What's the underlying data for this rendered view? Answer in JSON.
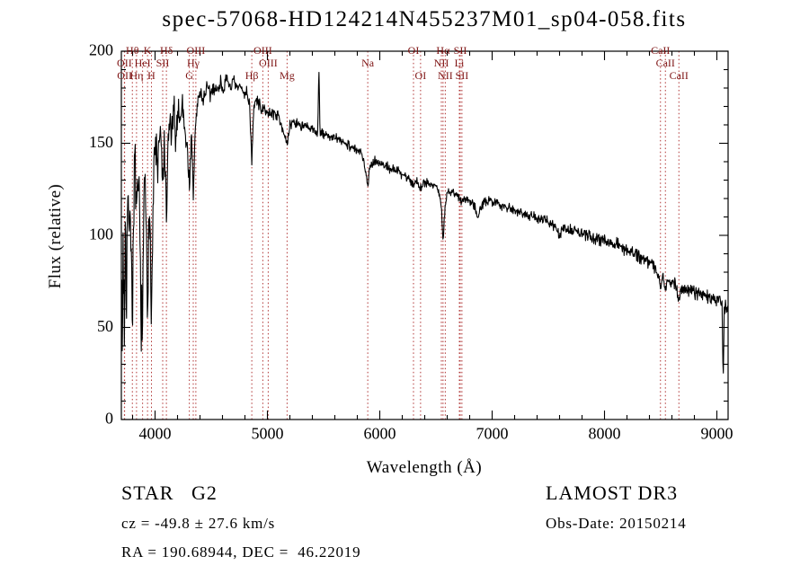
{
  "title": "spec-57068-HD124214N455237M01_sp04-058.fits",
  "annotations": {
    "class_label": "STAR   G2",
    "survey": "LAMOST DR3",
    "cz": "cz = -49.8 ± 27.6 km/s",
    "obs_date": "Obs-Date: 20150214",
    "coords": "RA = 190.68944, DEC =  46.22019"
  },
  "chart_data": {
    "type": "line",
    "title": "spec-57068-HD124214N455237M01_sp04-058.fits",
    "xlabel": "Wavelength (Å)",
    "ylabel": "Flux (relative)",
    "xlim": [
      3700,
      9100
    ],
    "ylim": [
      0,
      200
    ],
    "xticks": [
      4000,
      5000,
      6000,
      7000,
      8000,
      9000
    ],
    "yticks": [
      0,
      50,
      100,
      150,
      200
    ],
    "x_minor_step": 200,
    "y_minor_step": 10,
    "grid": false,
    "legend": "none",
    "line_color": "#000000",
    "marker_line_color": "#b03434",
    "label_color": "#7d1212",
    "seed": 7,
    "samples": 1400,
    "spectral_lines": [
      {
        "label": "OII",
        "wl": 3727,
        "row": 1
      },
      {
        "label": "OII",
        "wl": 3729,
        "row": 2
      },
      {
        "label": "Hθ",
        "wl": 3798,
        "row": 0
      },
      {
        "label": "Hη",
        "wl": 3835,
        "row": 2
      },
      {
        "label": "HeI",
        "wl": 3889,
        "row": 1
      },
      {
        "label": "K",
        "wl": 3933,
        "row": 0
      },
      {
        "label": "H",
        "wl": 3968,
        "row": 2
      },
      {
        "label": "SII",
        "wl": 4068,
        "row": 1
      },
      {
        "label": "Hδ",
        "wl": 4101,
        "row": 0
      },
      {
        "label": "G",
        "wl": 4305,
        "row": 2
      },
      {
        "label": "Hγ",
        "wl": 4340,
        "row": 1
      },
      {
        "label": "OIII",
        "wl": 4363,
        "row": 0
      },
      {
        "label": "Hβ",
        "wl": 4861,
        "row": 2
      },
      {
        "label": "OIII",
        "wl": 4959,
        "row": 0
      },
      {
        "label": "OIII",
        "wl": 5007,
        "row": 1
      },
      {
        "label": "Mg",
        "wl": 5175,
        "row": 2
      },
      {
        "label": "Na",
        "wl": 5893,
        "row": 1
      },
      {
        "label": "OI",
        "wl": 6300,
        "row": 0
      },
      {
        "label": "OI",
        "wl": 6363,
        "row": 2
      },
      {
        "label": "NII",
        "wl": 6548,
        "row": 1
      },
      {
        "label": "Hα",
        "wl": 6563,
        "row": 0
      },
      {
        "label": "NII",
        "wl": 6583,
        "row": 2
      },
      {
        "label": "Li",
        "wl": 6708,
        "row": 1
      },
      {
        "label": "SII",
        "wl": 6716,
        "row": 0
      },
      {
        "label": "SII",
        "wl": 6731,
        "row": 2
      },
      {
        "label": "CaII",
        "wl": 8498,
        "row": 0
      },
      {
        "label": "CaII",
        "wl": 8542,
        "row": 1
      },
      {
        "label": "CaII",
        "wl": 8662,
        "row": 2
      }
    ],
    "continuum": [
      [
        3700,
        75
      ],
      [
        3708,
        38
      ],
      [
        3716,
        98
      ],
      [
        3727,
        52
      ],
      [
        3736,
        108
      ],
      [
        3746,
        68
      ],
      [
        3756,
        122
      ],
      [
        3766,
        92
      ],
      [
        3776,
        132
      ],
      [
        3788,
        84
      ],
      [
        3798,
        58
      ],
      [
        3810,
        118
      ],
      [
        3822,
        140
      ],
      [
        3835,
        98
      ],
      [
        3848,
        132
      ],
      [
        3862,
        108
      ],
      [
        3875,
        62
      ],
      [
        3889,
        47
      ],
      [
        3902,
        118
      ],
      [
        3914,
        134
      ],
      [
        3924,
        88
      ],
      [
        3933,
        40
      ],
      [
        3943,
        96
      ],
      [
        3955,
        118
      ],
      [
        3968,
        58
      ],
      [
        3980,
        108
      ],
      [
        3993,
        142
      ],
      [
        4008,
        150
      ],
      [
        4022,
        132
      ],
      [
        4038,
        154
      ],
      [
        4054,
        148
      ],
      [
        4068,
        126
      ],
      [
        4084,
        150
      ],
      [
        4101,
        104
      ],
      [
        4116,
        150
      ],
      [
        4132,
        162
      ],
      [
        4150,
        154
      ],
      [
        4168,
        167
      ],
      [
        4186,
        152
      ],
      [
        4205,
        170
      ],
      [
        4225,
        163
      ],
      [
        4245,
        172
      ],
      [
        4265,
        158
      ],
      [
        4285,
        148
      ],
      [
        4305,
        127
      ],
      [
        4322,
        154
      ],
      [
        4340,
        121
      ],
      [
        4358,
        158
      ],
      [
        4378,
        172
      ],
      [
        4400,
        177
      ],
      [
        4430,
        174
      ],
      [
        4460,
        180
      ],
      [
        4490,
        176
      ],
      [
        4520,
        181
      ],
      [
        4550,
        178
      ],
      [
        4580,
        183
      ],
      [
        4610,
        180
      ],
      [
        4640,
        184
      ],
      [
        4670,
        181
      ],
      [
        4700,
        183
      ],
      [
        4730,
        179
      ],
      [
        4760,
        181
      ],
      [
        4790,
        177
      ],
      [
        4820,
        178
      ],
      [
        4842,
        170
      ],
      [
        4861,
        141
      ],
      [
        4882,
        172
      ],
      [
        4905,
        173
      ],
      [
        4930,
        171
      ],
      [
        4959,
        167
      ],
      [
        4985,
        169
      ],
      [
        5007,
        165
      ],
      [
        5035,
        167
      ],
      [
        5065,
        166
      ],
      [
        5095,
        165
      ],
      [
        5125,
        161
      ],
      [
        5155,
        153
      ],
      [
        5175,
        148
      ],
      [
        5198,
        159
      ],
      [
        5225,
        162
      ],
      [
        5255,
        161
      ],
      [
        5290,
        160
      ],
      [
        5330,
        159
      ],
      [
        5370,
        158
      ],
      [
        5410,
        157
      ],
      [
        5448,
        156
      ],
      [
        5458,
        193
      ],
      [
        5468,
        155
      ],
      [
        5505,
        155
      ],
      [
        5545,
        154
      ],
      [
        5585,
        153
      ],
      [
        5625,
        152
      ],
      [
        5665,
        151
      ],
      [
        5705,
        150
      ],
      [
        5750,
        148
      ],
      [
        5795,
        146
      ],
      [
        5840,
        144
      ],
      [
        5872,
        137
      ],
      [
        5893,
        127
      ],
      [
        5915,
        138
      ],
      [
        5955,
        141
      ],
      [
        6000,
        139
      ],
      [
        6050,
        138
      ],
      [
        6100,
        136
      ],
      [
        6155,
        135
      ],
      [
        6210,
        133
      ],
      [
        6260,
        131
      ],
      [
        6300,
        127
      ],
      [
        6330,
        130
      ],
      [
        6363,
        126
      ],
      [
        6400,
        129
      ],
      [
        6450,
        128
      ],
      [
        6500,
        127
      ],
      [
        6530,
        122
      ],
      [
        6548,
        116
      ],
      [
        6563,
        95
      ],
      [
        6581,
        116
      ],
      [
        6600,
        124
      ],
      [
        6650,
        123
      ],
      [
        6700,
        121
      ],
      [
        6731,
        119
      ],
      [
        6780,
        120
      ],
      [
        6830,
        118
      ],
      [
        6869,
        111
      ],
      [
        6915,
        117
      ],
      [
        6960,
        118
      ],
      [
        7000,
        119
      ],
      [
        7060,
        117
      ],
      [
        7120,
        116
      ],
      [
        7180,
        114
      ],
      [
        7240,
        113
      ],
      [
        7300,
        112
      ],
      [
        7360,
        110
      ],
      [
        7420,
        109
      ],
      [
        7480,
        108
      ],
      [
        7540,
        106
      ],
      [
        7594,
        100
      ],
      [
        7645,
        104
      ],
      [
        7700,
        103
      ],
      [
        7760,
        102
      ],
      [
        7820,
        100
      ],
      [
        7880,
        99
      ],
      [
        7940,
        98
      ],
      [
        8000,
        98
      ],
      [
        8060,
        96
      ],
      [
        8120,
        95
      ],
      [
        8180,
        93
      ],
      [
        8240,
        91
      ],
      [
        8300,
        89
      ],
      [
        8360,
        87
      ],
      [
        8420,
        85
      ],
      [
        8460,
        82
      ],
      [
        8482,
        78
      ],
      [
        8498,
        71
      ],
      [
        8520,
        79
      ],
      [
        8542,
        69
      ],
      [
        8565,
        77
      ],
      [
        8600,
        75
      ],
      [
        8630,
        73
      ],
      [
        8662,
        64
      ],
      [
        8690,
        72
      ],
      [
        8730,
        71
      ],
      [
        8770,
        70
      ],
      [
        8810,
        69
      ],
      [
        8850,
        68
      ],
      [
        8890,
        67
      ],
      [
        8930,
        66
      ],
      [
        8965,
        66
      ],
      [
        9000,
        65
      ],
      [
        9030,
        64
      ],
      [
        9046,
        62
      ],
      [
        9056,
        22
      ],
      [
        9066,
        60
      ],
      [
        9085,
        62
      ],
      [
        9100,
        60
      ]
    ],
    "noise_profile": [
      [
        3700,
        22
      ],
      [
        3800,
        20
      ],
      [
        3900,
        18
      ],
      [
        3980,
        14
      ],
      [
        4060,
        12
      ],
      [
        4160,
        10
      ],
      [
        4260,
        8
      ],
      [
        4400,
        5.5
      ],
      [
        4600,
        4
      ],
      [
        4900,
        3.2
      ],
      [
        5400,
        2.8
      ],
      [
        6000,
        2.6
      ],
      [
        6600,
        2.6
      ],
      [
        7200,
        2.8
      ],
      [
        7800,
        3.1
      ],
      [
        8400,
        3.6
      ],
      [
        8800,
        4
      ],
      [
        9100,
        4.2
      ]
    ]
  }
}
